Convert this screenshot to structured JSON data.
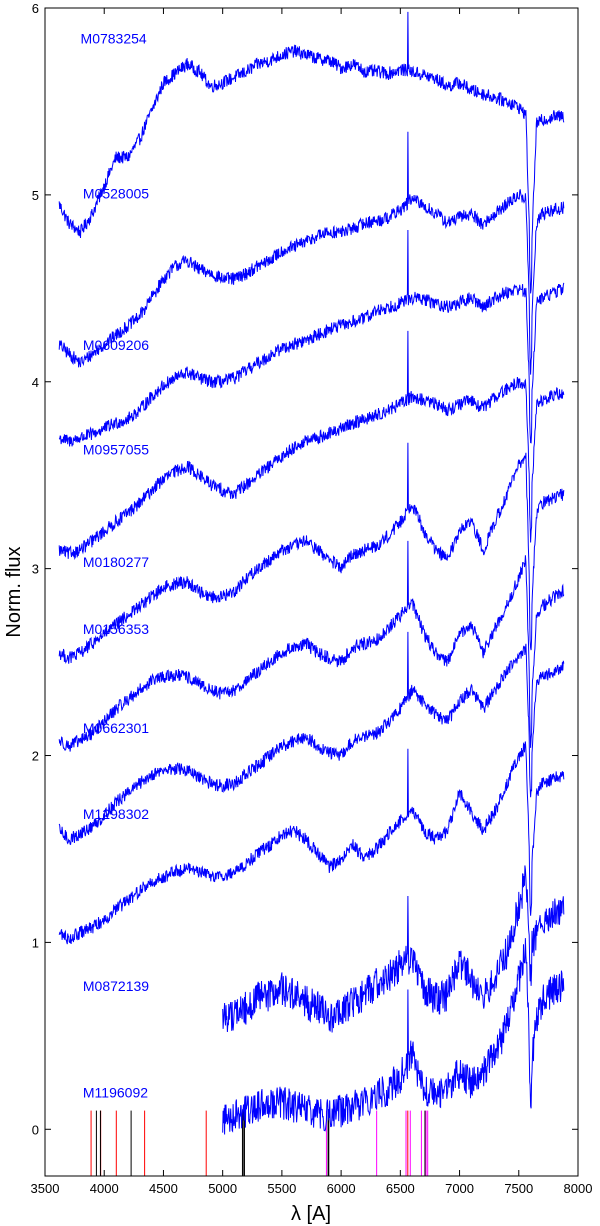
{
  "chart_data": {
    "type": "line",
    "xlabel": "λ [A]",
    "ylabel": "Norm. flux",
    "xlim": [
      3500,
      8000
    ],
    "ylim": [
      -0.25,
      6
    ],
    "xticks": [
      3500,
      4000,
      4500,
      5000,
      5500,
      6000,
      6500,
      7000,
      7500,
      8000
    ],
    "yticks": [
      0,
      1,
      2,
      3,
      4,
      5,
      6
    ],
    "grid": false,
    "line_color": "#0000ff",
    "series": [
      {
        "name": "M0783254",
        "label_pos": [
          3800,
          5.81
        ],
        "x": [
          3620,
          3700,
          3800,
          3900,
          4000,
          4100,
          4200,
          4300,
          4400,
          4500,
          4600,
          4700,
          4800,
          4900,
          5000,
          5100,
          5200,
          5300,
          5400,
          5500,
          5600,
          5700,
          5800,
          5900,
          6000,
          6100,
          6200,
          6300,
          6400,
          6500,
          6600,
          6700,
          6800,
          6900,
          7000,
          7100,
          7200,
          7300,
          7400,
          7500,
          7560,
          7600,
          7650,
          7700,
          7800,
          7880
        ],
        "y": [
          4.95,
          4.85,
          4.8,
          4.9,
          5.05,
          5.2,
          5.2,
          5.3,
          5.45,
          5.6,
          5.65,
          5.7,
          5.66,
          5.58,
          5.6,
          5.63,
          5.66,
          5.7,
          5.72,
          5.75,
          5.77,
          5.75,
          5.73,
          5.72,
          5.68,
          5.7,
          5.66,
          5.66,
          5.65,
          5.67,
          5.66,
          5.64,
          5.62,
          5.58,
          5.6,
          5.56,
          5.54,
          5.52,
          5.5,
          5.47,
          5.43,
          4.6,
          5.38,
          5.4,
          5.42,
          5.42
        ]
      },
      {
        "name": "M0528005",
        "label_pos": [
          3820,
          4.98
        ],
        "x": [
          3620,
          3700,
          3800,
          3900,
          4000,
          4100,
          4200,
          4300,
          4400,
          4500,
          4600,
          4700,
          4800,
          4900,
          5000,
          5100,
          5200,
          5300,
          5400,
          5500,
          5600,
          5700,
          5800,
          5900,
          6000,
          6100,
          6200,
          6300,
          6400,
          6500,
          6600,
          6700,
          6800,
          6900,
          7000,
          7100,
          7200,
          7300,
          7400,
          7500,
          7560,
          7600,
          7650,
          7700,
          7800,
          7880
        ],
        "y": [
          4.2,
          4.15,
          4.1,
          4.15,
          4.2,
          4.25,
          4.3,
          4.35,
          4.45,
          4.55,
          4.62,
          4.65,
          4.6,
          4.58,
          4.55,
          4.55,
          4.58,
          4.62,
          4.65,
          4.7,
          4.72,
          4.75,
          4.78,
          4.8,
          4.8,
          4.82,
          4.85,
          4.86,
          4.88,
          4.92,
          4.98,
          4.94,
          4.9,
          4.85,
          4.88,
          4.9,
          4.84,
          4.9,
          4.95,
          5.0,
          4.98,
          4.2,
          4.85,
          4.9,
          4.92,
          4.93
        ]
      },
      {
        "name": "M0609206",
        "label_pos": [
          3820,
          4.17
        ],
        "x": [
          3620,
          3700,
          3800,
          3900,
          4000,
          4100,
          4200,
          4300,
          4400,
          4500,
          4600,
          4700,
          4800,
          4900,
          5000,
          5100,
          5200,
          5300,
          5400,
          5500,
          5600,
          5700,
          5800,
          5900,
          6000,
          6100,
          6200,
          6300,
          6400,
          6500,
          6600,
          6700,
          6800,
          6900,
          7000,
          7100,
          7200,
          7300,
          7400,
          7500,
          7560,
          7600,
          7650,
          7700,
          7800,
          7880
        ],
        "y": [
          3.7,
          3.68,
          3.7,
          3.72,
          3.75,
          3.78,
          3.8,
          3.85,
          3.92,
          3.98,
          4.02,
          4.05,
          4.02,
          4.0,
          4.0,
          4.02,
          4.06,
          4.1,
          4.14,
          4.18,
          4.2,
          4.22,
          4.25,
          4.28,
          4.3,
          4.32,
          4.34,
          4.38,
          4.4,
          4.42,
          4.45,
          4.44,
          4.42,
          4.4,
          4.42,
          4.45,
          4.4,
          4.45,
          4.48,
          4.5,
          4.48,
          3.8,
          4.42,
          4.45,
          4.48,
          4.5
        ]
      },
      {
        "name": "M0957055",
        "label_pos": [
          3820,
          3.61
        ],
        "x": [
          3620,
          3700,
          3800,
          3900,
          4000,
          4100,
          4200,
          4300,
          4400,
          4500,
          4600,
          4700,
          4800,
          4900,
          5000,
          5100,
          5200,
          5300,
          5400,
          5500,
          5600,
          5700,
          5800,
          5900,
          6000,
          6100,
          6200,
          6300,
          6400,
          6500,
          6600,
          6700,
          6800,
          6900,
          7000,
          7100,
          7200,
          7300,
          7400,
          7500,
          7560,
          7600,
          7650,
          7700,
          7800,
          7880
        ],
        "y": [
          3.1,
          3.08,
          3.1,
          3.15,
          3.2,
          3.25,
          3.3,
          3.35,
          3.42,
          3.48,
          3.52,
          3.55,
          3.5,
          3.45,
          3.42,
          3.4,
          3.45,
          3.5,
          3.55,
          3.6,
          3.65,
          3.68,
          3.7,
          3.72,
          3.75,
          3.78,
          3.8,
          3.82,
          3.85,
          3.88,
          3.92,
          3.9,
          3.88,
          3.85,
          3.88,
          3.9,
          3.86,
          3.92,
          3.96,
          4.0,
          3.98,
          3.3,
          3.88,
          3.9,
          3.93,
          3.94
        ]
      },
      {
        "name": "M0180277",
        "label_pos": [
          3820,
          3.01
        ],
        "x": [
          3620,
          3700,
          3800,
          3900,
          4000,
          4100,
          4200,
          4300,
          4400,
          4500,
          4600,
          4700,
          4800,
          4900,
          5000,
          5100,
          5200,
          5300,
          5400,
          5500,
          5600,
          5700,
          5800,
          5900,
          6000,
          6100,
          6200,
          6300,
          6400,
          6500,
          6600,
          6700,
          6800,
          6900,
          7000,
          7100,
          7200,
          7300,
          7400,
          7500,
          7560,
          7600,
          7650,
          7700,
          7800,
          7880
        ],
        "y": [
          2.55,
          2.52,
          2.55,
          2.6,
          2.65,
          2.7,
          2.75,
          2.8,
          2.85,
          2.9,
          2.92,
          2.93,
          2.88,
          2.85,
          2.85,
          2.88,
          2.95,
          3.0,
          3.05,
          3.1,
          3.12,
          3.15,
          3.1,
          3.05,
          3.0,
          3.08,
          3.1,
          3.12,
          3.18,
          3.25,
          3.35,
          3.2,
          3.1,
          3.05,
          3.2,
          3.25,
          3.1,
          3.25,
          3.4,
          3.55,
          3.6,
          2.7,
          3.3,
          3.35,
          3.38,
          3.4
        ]
      },
      {
        "name": "M0156353",
        "label_pos": [
          3820,
          2.65
        ],
        "x": [
          3620,
          3700,
          3800,
          3900,
          4000,
          4100,
          4200,
          4300,
          4400,
          4500,
          4600,
          4700,
          4800,
          4900,
          5000,
          5100,
          5200,
          5300,
          5400,
          5500,
          5600,
          5700,
          5800,
          5900,
          6000,
          6100,
          6200,
          6300,
          6400,
          6500,
          6600,
          6700,
          6800,
          6900,
          7000,
          7100,
          7200,
          7300,
          7400,
          7500,
          7560,
          7600,
          7650,
          7700,
          7800,
          7880
        ],
        "y": [
          2.08,
          2.05,
          2.08,
          2.12,
          2.18,
          2.25,
          2.3,
          2.35,
          2.4,
          2.42,
          2.43,
          2.42,
          2.38,
          2.35,
          2.33,
          2.35,
          2.4,
          2.45,
          2.5,
          2.55,
          2.58,
          2.6,
          2.55,
          2.52,
          2.5,
          2.58,
          2.6,
          2.62,
          2.68,
          2.75,
          2.82,
          2.65,
          2.55,
          2.5,
          2.65,
          2.7,
          2.55,
          2.68,
          2.8,
          2.95,
          3.05,
          2.2,
          2.75,
          2.8,
          2.85,
          2.88
        ]
      },
      {
        "name": "M0662301",
        "label_pos": [
          3820,
          2.12
        ],
        "x": [
          3620,
          3700,
          3800,
          3900,
          4000,
          4100,
          4200,
          4300,
          4400,
          4500,
          4600,
          4700,
          4800,
          4900,
          5000,
          5100,
          5200,
          5300,
          5400,
          5500,
          5600,
          5700,
          5800,
          5900,
          6000,
          6100,
          6200,
          6300,
          6400,
          6500,
          6600,
          6700,
          6800,
          6900,
          7000,
          7100,
          7200,
          7300,
          7400,
          7500,
          7560,
          7600,
          7650,
          7700,
          7800,
          7880
        ],
        "y": [
          1.6,
          1.55,
          1.58,
          1.62,
          1.68,
          1.75,
          1.8,
          1.85,
          1.9,
          1.92,
          1.93,
          1.92,
          1.88,
          1.85,
          1.84,
          1.85,
          1.9,
          1.95,
          2.0,
          2.05,
          2.08,
          2.1,
          2.05,
          2.02,
          2.0,
          2.08,
          2.1,
          2.12,
          2.18,
          2.25,
          2.35,
          2.28,
          2.22,
          2.18,
          2.3,
          2.35,
          2.25,
          2.35,
          2.45,
          2.52,
          2.58,
          1.9,
          2.4,
          2.42,
          2.45,
          2.48
        ]
      },
      {
        "name": "M1298302",
        "label_pos": [
          3820,
          1.66
        ],
        "x": [
          3620,
          3700,
          3800,
          3900,
          4000,
          4100,
          4200,
          4300,
          4400,
          4500,
          4600,
          4700,
          4800,
          4900,
          5000,
          5100,
          5200,
          5300,
          5400,
          5500,
          5600,
          5700,
          5800,
          5900,
          6000,
          6100,
          6200,
          6300,
          6400,
          6500,
          6600,
          6700,
          6800,
          6900,
          7000,
          7100,
          7200,
          7300,
          7400,
          7500,
          7560,
          7600,
          7650,
          7700,
          7800,
          7880
        ],
        "y": [
          1.05,
          1.02,
          1.05,
          1.08,
          1.12,
          1.18,
          1.22,
          1.28,
          1.32,
          1.35,
          1.38,
          1.4,
          1.38,
          1.36,
          1.35,
          1.38,
          1.42,
          1.48,
          1.52,
          1.58,
          1.6,
          1.55,
          1.48,
          1.4,
          1.45,
          1.52,
          1.45,
          1.5,
          1.58,
          1.65,
          1.72,
          1.6,
          1.55,
          1.6,
          1.8,
          1.7,
          1.6,
          1.7,
          1.85,
          2.0,
          2.05,
          1.3,
          1.8,
          1.85,
          1.88,
          1.9
        ]
      },
      {
        "name": "M0872139",
        "label_pos": [
          3820,
          0.74
        ],
        "x": [
          5000,
          5100,
          5200,
          5300,
          5400,
          5500,
          5600,
          5700,
          5800,
          5900,
          6000,
          6100,
          6200,
          6300,
          6400,
          6500,
          6600,
          6700,
          6800,
          6900,
          7000,
          7100,
          7200,
          7300,
          7400,
          7500,
          7560,
          7600,
          7650,
          7700,
          7800,
          7880
        ],
        "y": [
          0.6,
          0.62,
          0.65,
          0.7,
          0.72,
          0.75,
          0.72,
          0.68,
          0.65,
          0.6,
          0.62,
          0.68,
          0.72,
          0.78,
          0.82,
          0.88,
          0.92,
          0.75,
          0.7,
          0.72,
          0.9,
          0.8,
          0.72,
          0.8,
          0.95,
          1.2,
          1.35,
          0.95,
          1.05,
          1.1,
          1.15,
          1.2
        ]
      },
      {
        "name": "M1196092",
        "label_pos": [
          3820,
          0.17
        ],
        "x": [
          5000,
          5100,
          5200,
          5300,
          5400,
          5500,
          5600,
          5700,
          5800,
          5900,
          6000,
          6100,
          6200,
          6300,
          6400,
          6500,
          6600,
          6700,
          6800,
          6900,
          7000,
          7100,
          7200,
          7300,
          7400,
          7500,
          7560,
          7600,
          7650,
          7700,
          7800,
          7880
        ],
        "y": [
          0.05,
          0.08,
          0.1,
          0.12,
          0.15,
          0.14,
          0.12,
          0.1,
          0.08,
          0.08,
          0.1,
          0.12,
          0.15,
          0.18,
          0.22,
          0.28,
          0.4,
          0.2,
          0.18,
          0.22,
          0.3,
          0.25,
          0.3,
          0.4,
          0.55,
          0.8,
          0.95,
          0.3,
          0.6,
          0.7,
          0.75,
          0.78
        ]
      }
    ],
    "line_markers": [
      {
        "color": "#ff0000",
        "x": [
          3889,
          3970,
          4102,
          4341,
          4861,
          6563
        ]
      },
      {
        "color": "#000000",
        "x": [
          3934,
          3968,
          4227,
          5167,
          5173,
          5184,
          5890,
          5896,
          6708
        ]
      },
      {
        "color": "#ff00ff",
        "x": [
          5876,
          6300,
          6548,
          6584,
          6678,
          6717,
          6731
        ]
      }
    ],
    "marker_ymin": -0.25,
    "marker_ymax": 0.1
  }
}
